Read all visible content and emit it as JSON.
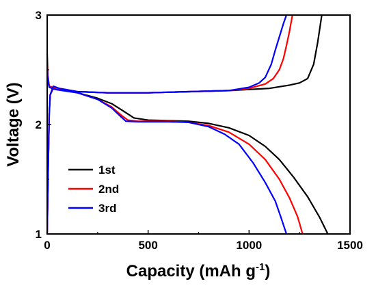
{
  "chart_data": {
    "type": "line",
    "xlabel": "Capacity (mAh g",
    "xlabel_sup": "-1",
    "xlabel_end": ")",
    "ylabel": "Voltage (V)",
    "xlim": [
      0,
      1500
    ],
    "ylim": [
      1,
      3
    ],
    "xticks": [
      "0",
      "500",
      "1000",
      "1500"
    ],
    "yticks": [
      "1",
      "2",
      "3"
    ],
    "grid": false,
    "legend_position": "lower-left",
    "series": [
      {
        "name": "1st",
        "color": "#000000",
        "discharge": [
          [
            0,
            2.65
          ],
          [
            3,
            2.45
          ],
          [
            10,
            2.35
          ],
          [
            40,
            2.33
          ],
          [
            150,
            2.29
          ],
          [
            250,
            2.24
          ],
          [
            320,
            2.19
          ],
          [
            380,
            2.12
          ],
          [
            430,
            2.06
          ],
          [
            500,
            2.04
          ],
          [
            600,
            2.035
          ],
          [
            700,
            2.03
          ],
          [
            800,
            2.01
          ],
          [
            900,
            1.97
          ],
          [
            1000,
            1.9
          ],
          [
            1080,
            1.8
          ],
          [
            1150,
            1.68
          ],
          [
            1220,
            1.52
          ],
          [
            1290,
            1.34
          ],
          [
            1350,
            1.15
          ],
          [
            1390,
            1.0
          ]
        ],
        "charge": [
          [
            0,
            1.0
          ],
          [
            5,
            1.6
          ],
          [
            10,
            2.1
          ],
          [
            15,
            2.27
          ],
          [
            30,
            2.33
          ],
          [
            60,
            2.32
          ],
          [
            150,
            2.3
          ],
          [
            300,
            2.29
          ],
          [
            500,
            2.29
          ],
          [
            700,
            2.3
          ],
          [
            900,
            2.31
          ],
          [
            1000,
            2.32
          ],
          [
            1100,
            2.33
          ],
          [
            1200,
            2.36
          ],
          [
            1250,
            2.38
          ],
          [
            1290,
            2.42
          ],
          [
            1320,
            2.55
          ],
          [
            1340,
            2.75
          ],
          [
            1360,
            3.0
          ]
        ]
      },
      {
        "name": "2nd",
        "color": "#ff0000",
        "discharge": [
          [
            0,
            2.55
          ],
          [
            3,
            2.42
          ],
          [
            10,
            2.35
          ],
          [
            40,
            2.33
          ],
          [
            150,
            2.29
          ],
          [
            250,
            2.23
          ],
          [
            320,
            2.16
          ],
          [
            370,
            2.08
          ],
          [
            400,
            2.04
          ],
          [
            450,
            2.03
          ],
          [
            600,
            2.03
          ],
          [
            700,
            2.02
          ],
          [
            800,
            1.99
          ],
          [
            900,
            1.93
          ],
          [
            1000,
            1.82
          ],
          [
            1080,
            1.68
          ],
          [
            1150,
            1.5
          ],
          [
            1200,
            1.33
          ],
          [
            1240,
            1.16
          ],
          [
            1265,
            1.0
          ]
        ],
        "charge": [
          [
            0,
            1.0
          ],
          [
            5,
            1.6
          ],
          [
            10,
            2.1
          ],
          [
            15,
            2.27
          ],
          [
            30,
            2.34
          ],
          [
            60,
            2.33
          ],
          [
            150,
            2.3
          ],
          [
            300,
            2.29
          ],
          [
            500,
            2.29
          ],
          [
            700,
            2.3
          ],
          [
            900,
            2.31
          ],
          [
            1000,
            2.33
          ],
          [
            1080,
            2.37
          ],
          [
            1120,
            2.42
          ],
          [
            1150,
            2.5
          ],
          [
            1170,
            2.6
          ],
          [
            1185,
            2.72
          ],
          [
            1200,
            2.85
          ],
          [
            1215,
            3.0
          ]
        ]
      },
      {
        "name": "3rd",
        "color": "#0000ff",
        "discharge": [
          [
            0,
            2.5
          ],
          [
            3,
            2.4
          ],
          [
            10,
            2.34
          ],
          [
            40,
            2.32
          ],
          [
            150,
            2.29
          ],
          [
            250,
            2.23
          ],
          [
            320,
            2.15
          ],
          [
            360,
            2.08
          ],
          [
            390,
            2.03
          ],
          [
            450,
            2.025
          ],
          [
            600,
            2.025
          ],
          [
            700,
            2.02
          ],
          [
            800,
            1.98
          ],
          [
            880,
            1.91
          ],
          [
            950,
            1.82
          ],
          [
            1020,
            1.65
          ],
          [
            1080,
            1.47
          ],
          [
            1130,
            1.3
          ],
          [
            1160,
            1.14
          ],
          [
            1185,
            1.0
          ]
        ],
        "charge": [
          [
            0,
            1.0
          ],
          [
            5,
            1.6
          ],
          [
            10,
            2.1
          ],
          [
            15,
            2.27
          ],
          [
            30,
            2.35
          ],
          [
            60,
            2.33
          ],
          [
            150,
            2.3
          ],
          [
            300,
            2.29
          ],
          [
            500,
            2.29
          ],
          [
            700,
            2.3
          ],
          [
            900,
            2.31
          ],
          [
            1000,
            2.34
          ],
          [
            1050,
            2.38
          ],
          [
            1080,
            2.43
          ],
          [
            1110,
            2.55
          ],
          [
            1130,
            2.68
          ],
          [
            1150,
            2.8
          ],
          [
            1170,
            2.92
          ],
          [
            1185,
            3.0
          ]
        ]
      }
    ]
  }
}
